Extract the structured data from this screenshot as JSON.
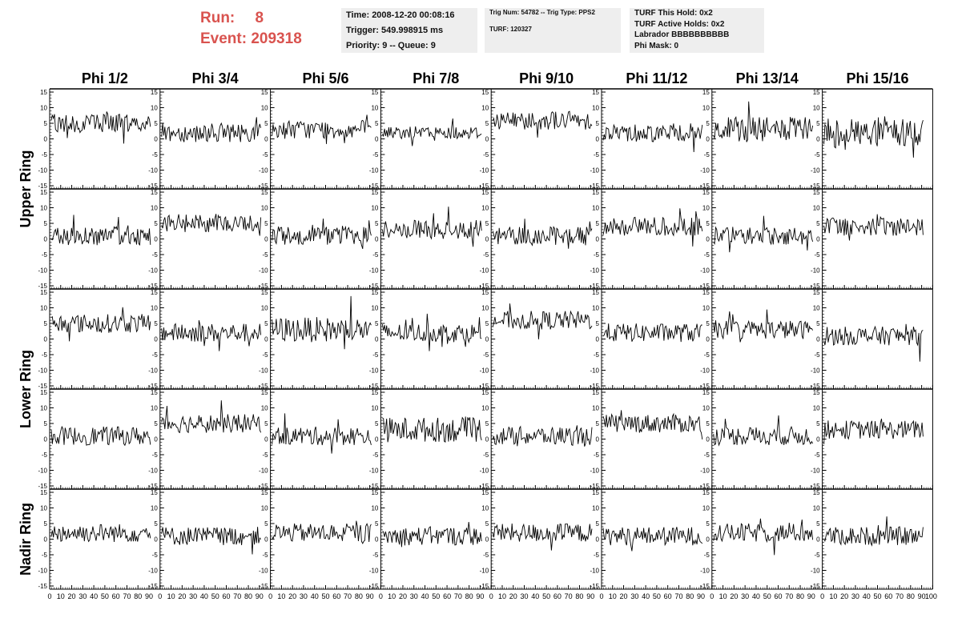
{
  "header": {
    "run_label": "Run:",
    "run_value": "8",
    "event_label": "Event:",
    "event_value": "209318"
  },
  "info_time": {
    "time": "Time: 2008-12-20 00:08:16",
    "trigger": "Trigger: 549.998915 ms",
    "priority": "Priority: 9 -- Queue: 9"
  },
  "info_trig": {
    "trig": "Trig Num: 54782 -- Trig Type: PPS2",
    "turf": "TURF: 120327"
  },
  "info_turf": {
    "this_hold": "TURF This Hold: 0x2",
    "active_holds": "TURF Active Holds: 0x2",
    "labrador": "Labrador BBBBBBBBBB",
    "phi_mask": "Phi Mask: 0"
  },
  "chart_data": {
    "type": "line",
    "columns": [
      "Phi 1/2",
      "Phi 3/4",
      "Phi 5/6",
      "Phi 7/8",
      "Phi 9/10",
      "Phi 11/12",
      "Phi 13/14",
      "Phi 15/16"
    ],
    "rows": [
      "Upper Ring",
      "Upper Ring",
      "Lower Ring",
      "Lower Ring",
      "Nadir Ring"
    ],
    "row_labels": [
      "Upper Ring",
      "Lower Ring",
      "Nadir Ring"
    ],
    "xlim": [
      0,
      100
    ],
    "ylim": [
      -15,
      15
    ],
    "x_ticks": [
      0,
      10,
      20,
      30,
      40,
      50,
      60,
      70,
      80,
      90
    ],
    "x_tick_labels": [
      "0",
      "10",
      "20",
      "30",
      "40",
      "50",
      "60",
      "70",
      "80",
      "90"
    ],
    "x_last_tick_label": "100",
    "y_ticks": [
      15,
      10,
      5,
      0,
      -5,
      -10,
      -15
    ],
    "y_tick_labels": [
      "15",
      "10",
      "5",
      "0",
      "-5",
      "-10",
      "-15"
    ],
    "samples_per_trace": 94,
    "baselines": [
      [
        5,
        2,
        3,
        2,
        6,
        2,
        3,
        2
      ],
      [
        1,
        5,
        1,
        3,
        1,
        4,
        1,
        4
      ],
      [
        5,
        2,
        3,
        2,
        6,
        2,
        3,
        1
      ],
      [
        1,
        5,
        1,
        3,
        1,
        5,
        1,
        3
      ],
      [
        2,
        1,
        2,
        1,
        2,
        1,
        2,
        1
      ]
    ],
    "amplitudes": [
      [
        3,
        3,
        3,
        2,
        3,
        3,
        4,
        5
      ],
      [
        3,
        3,
        3,
        3,
        3,
        3,
        3,
        3
      ],
      [
        3,
        3,
        4,
        3,
        3,
        3,
        3,
        3
      ],
      [
        3,
        3,
        3,
        4,
        3,
        3,
        3,
        3
      ],
      [
        3,
        3,
        3,
        3,
        3,
        3,
        3,
        3
      ]
    ]
  }
}
